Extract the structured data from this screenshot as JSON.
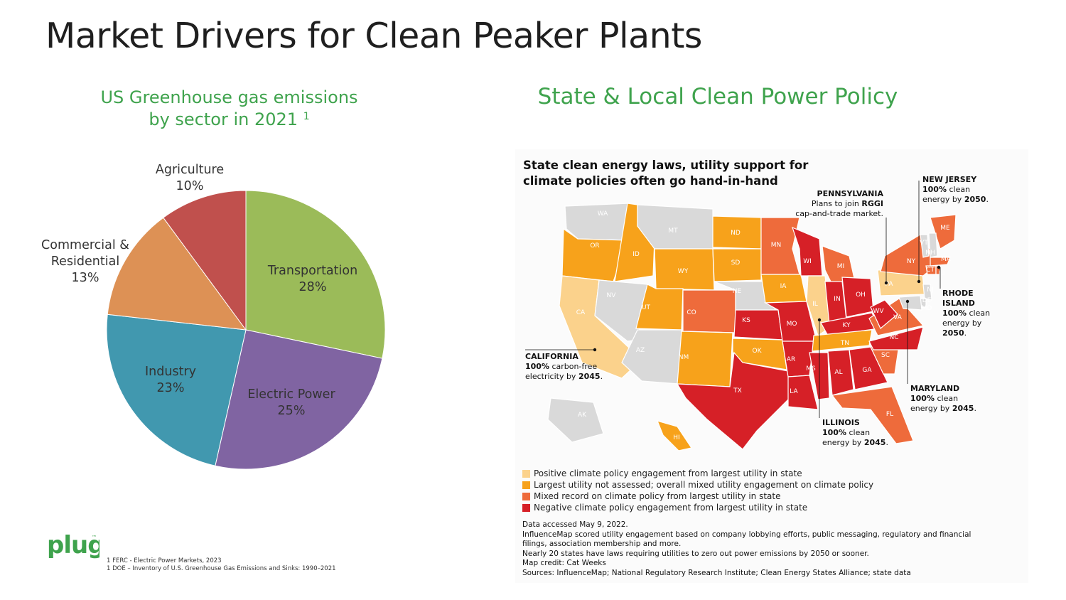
{
  "page": {
    "title": "Market Drivers for Clean Peaker Plants",
    "left_subtitle_line1": "US Greenhouse gas emissions",
    "left_subtitle_line2": "by sector in 2021",
    "left_subtitle_sup": "1",
    "right_subtitle": "State & Local Clean Power Policy"
  },
  "chart_data": {
    "type": "pie",
    "title": "US Greenhouse gas emissions by sector in 2021",
    "slices": [
      {
        "label": "Transportation",
        "value": 28,
        "color": "#9bbb59"
      },
      {
        "label": "Electric Power",
        "value": 25,
        "color": "#8064a2"
      },
      {
        "label": "Industry",
        "value": 23,
        "color": "#4198af"
      },
      {
        "label": "Commercial & Residential",
        "value": 13,
        "color": "#dd9155"
      },
      {
        "label": "Agriculture",
        "value": 10,
        "color": "#c0504d"
      }
    ]
  },
  "map": {
    "heading_line1": "State clean energy laws, utility support for",
    "heading_line2": "climate policies often go hand-in-hand",
    "colors": {
      "positive": "#fbd28c",
      "mixed_unassessed": "#f7a21b",
      "mixed": "#ee6b3b",
      "negative": "#d62027",
      "grey": "#d9d9d9"
    },
    "states": [
      {
        "abbr": "WA",
        "cat": "grey"
      },
      {
        "abbr": "OR",
        "cat": "mixed_unassessed"
      },
      {
        "abbr": "CA",
        "cat": "positive"
      },
      {
        "abbr": "ID",
        "cat": "mixed_unassessed"
      },
      {
        "abbr": "NV",
        "cat": "grey"
      },
      {
        "abbr": "MT",
        "cat": "grey"
      },
      {
        "abbr": "WY",
        "cat": "mixed_unassessed"
      },
      {
        "abbr": "UT",
        "cat": "mixed_unassessed"
      },
      {
        "abbr": "AZ",
        "cat": "grey"
      },
      {
        "abbr": "CO",
        "cat": "mixed"
      },
      {
        "abbr": "NM",
        "cat": "mixed_unassessed"
      },
      {
        "abbr": "ND",
        "cat": "mixed_unassessed"
      },
      {
        "abbr": "SD",
        "cat": "mixed_unassessed"
      },
      {
        "abbr": "NE",
        "cat": "grey"
      },
      {
        "abbr": "KS",
        "cat": "negative"
      },
      {
        "abbr": "OK",
        "cat": "mixed_unassessed"
      },
      {
        "abbr": "TX",
        "cat": "negative"
      },
      {
        "abbr": "MN",
        "cat": "mixed"
      },
      {
        "abbr": "IA",
        "cat": "mixed_unassessed"
      },
      {
        "abbr": "MO",
        "cat": "negative"
      },
      {
        "abbr": "AR",
        "cat": "negative"
      },
      {
        "abbr": "LA",
        "cat": "negative"
      },
      {
        "abbr": "WI",
        "cat": "negative"
      },
      {
        "abbr": "IL",
        "cat": "positive"
      },
      {
        "abbr": "MI",
        "cat": "mixed"
      },
      {
        "abbr": "IN",
        "cat": "negative"
      },
      {
        "abbr": "OH",
        "cat": "negative"
      },
      {
        "abbr": "KY",
        "cat": "negative"
      },
      {
        "abbr": "TN",
        "cat": "mixed_unassessed"
      },
      {
        "abbr": "MS",
        "cat": "negative"
      },
      {
        "abbr": "AL",
        "cat": "negative"
      },
      {
        "abbr": "GA",
        "cat": "negative"
      },
      {
        "abbr": "FL",
        "cat": "mixed"
      },
      {
        "abbr": "SC",
        "cat": "mixed"
      },
      {
        "abbr": "NC",
        "cat": "negative"
      },
      {
        "abbr": "VA",
        "cat": "mixed"
      },
      {
        "abbr": "WV",
        "cat": "negative"
      },
      {
        "abbr": "PA",
        "cat": "positive"
      },
      {
        "abbr": "NY",
        "cat": "mixed"
      },
      {
        "abbr": "ME",
        "cat": "mixed"
      },
      {
        "abbr": "VT",
        "cat": "grey"
      },
      {
        "abbr": "NH",
        "cat": "grey"
      },
      {
        "abbr": "MA",
        "cat": "mixed"
      },
      {
        "abbr": "CT",
        "cat": "mixed"
      },
      {
        "abbr": "RI",
        "cat": "mixed"
      },
      {
        "abbr": "NJ",
        "cat": "grey"
      },
      {
        "abbr": "DE",
        "cat": "grey"
      },
      {
        "abbr": "MD",
        "cat": "grey"
      },
      {
        "abbr": "AK",
        "cat": "grey"
      },
      {
        "abbr": "HI",
        "cat": "mixed_unassessed"
      }
    ],
    "callouts": {
      "pennsylvania": {
        "name": "PENNSYLVANIA",
        "l1": "Plans to join ",
        "bold": "RGGI",
        "l2": "cap-and-trade market."
      },
      "new_jersey": {
        "name": "NEW JERSEY",
        "pct": "100%",
        "l1": " clean",
        "l2": "energy by ",
        "year": "2050",
        "end": "."
      },
      "rhode_island": {
        "name1": "RHODE",
        "name2": "ISLAND",
        "pct": "100%",
        "l1": " clean",
        "l2": "energy by",
        "year": "2050",
        "end": "."
      },
      "california": {
        "name": "CALIFORNIA",
        "pct": "100%",
        "l1": " carbon-free",
        "l2": "electricity by ",
        "year": "2045",
        "end": "."
      },
      "maryland": {
        "name": "MARYLAND",
        "pct": "100%",
        "l1": " clean",
        "l2": "energy by ",
        "year": "2045",
        "end": "."
      },
      "illinois": {
        "name": "ILLINOIS",
        "pct": "100%",
        "l1": " clean",
        "l2": "energy by ",
        "year": "2045",
        "end": "."
      }
    },
    "legend": [
      {
        "label": "Positive climate policy engagement from largest utility in state",
        "color": "#fbd28c"
      },
      {
        "label": "Largest utility not assessed; overall mixed utility engagement on climate policy",
        "color": "#f7a21b"
      },
      {
        "label": "Mixed record on climate policy from largest utility in state",
        "color": "#ee6b3b"
      },
      {
        "label": "Negative climate policy engagement from largest utility in state",
        "color": "#d62027"
      }
    ],
    "notes": {
      "accessed": "Data accessed May 9, 2022.",
      "method": "InfluenceMap scored utility engagement based on company lobbying efforts, public messaging, regulatory and financial filings, association membership and more.",
      "laws": "Nearly 20 states have laws requiring utilities to zero out power emissions by 2050 or sooner.",
      "credit": "Map credit: Cat Weeks",
      "sources": "Sources: InfluenceMap; National Regulatory Research Institute; Clean Energy States Alliance; state data"
    }
  },
  "footer": {
    "logo_text": "plug",
    "logo_tm": "™",
    "footnote1": "1 FERC - Electric Power Markets, 2023",
    "footnote2": "1 DOE –  Inventory of U.S. Greenhouse Gas Emissions and Sinks: 1990–2021"
  }
}
